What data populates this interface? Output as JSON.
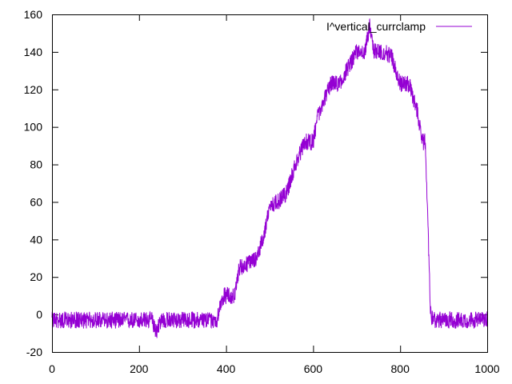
{
  "chart_data": {
    "type": "line",
    "title": "",
    "xlabel": "",
    "ylabel": "",
    "xlim": [
      0,
      1000
    ],
    "ylim": [
      -20,
      160
    ],
    "x_ticks": [
      0,
      200,
      400,
      600,
      800,
      1000
    ],
    "y_ticks": [
      -20,
      0,
      20,
      40,
      60,
      80,
      100,
      120,
      140,
      160
    ],
    "grid": false,
    "legend_position": "top-right",
    "series": [
      {
        "name": "I^vertical_currclamp",
        "color": "#9400d3",
        "x": [
          0,
          100,
          200,
          230,
          240,
          250,
          300,
          380,
          385,
          395,
          420,
          430,
          450,
          470,
          490,
          500,
          520,
          540,
          555,
          580,
          600,
          610,
          640,
          660,
          700,
          720,
          730,
          740,
          760,
          780,
          800,
          820,
          840,
          850,
          858,
          862,
          866,
          870,
          878,
          900,
          950,
          1000
        ],
        "y": [
          -3,
          -3,
          -3,
          -3,
          -9,
          -3,
          -3,
          -3,
          5,
          10,
          10,
          25,
          27,
          30,
          45,
          58,
          60,
          65,
          77,
          92,
          92,
          105,
          123,
          123,
          140,
          140,
          155,
          140,
          140,
          138,
          123,
          123,
          108,
          92,
          92,
          60,
          30,
          0,
          -3,
          -3,
          -3,
          -3
        ]
      }
    ]
  }
}
